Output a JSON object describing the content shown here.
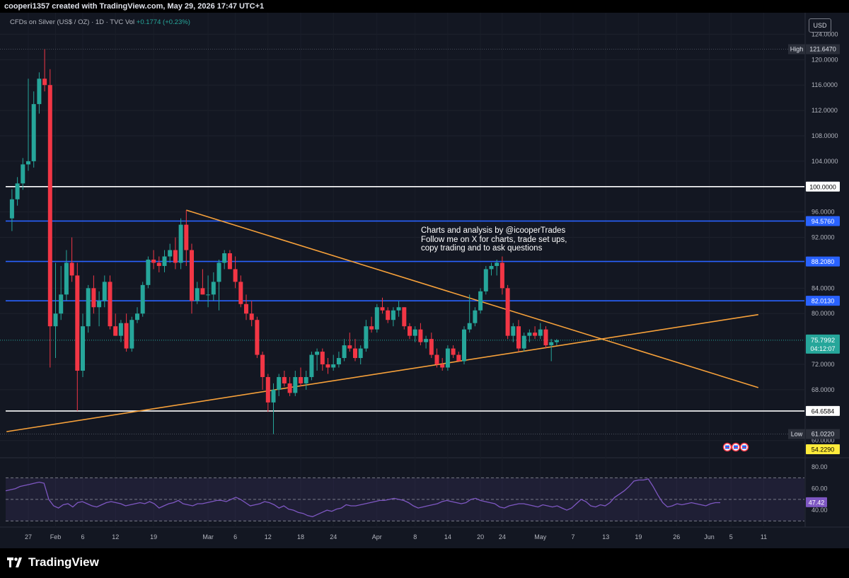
{
  "header": {
    "credit": "cooperi1357 created with TradingView.com, May 29, 2026 17:47 UTC+1"
  },
  "legend": {
    "symbol": "CFDs on Silver (US$ / OZ) · 1D · TVC",
    "vol_label": "Vol",
    "change": "+0.1774 (+0.23%)"
  },
  "currency_button": "USD",
  "annotation": {
    "lines": [
      "Charts and analysis by @icooperTrades",
      "Follow me on X for charts, trade set ups,",
      "copy trading and to ask questions"
    ]
  },
  "footer": {
    "brand": "TradingView"
  },
  "chart_data": {
    "type": "candlestick",
    "ylim": [
      60.3,
      126.5
    ],
    "yticks": [
      "124.0000",
      "120.0000",
      "116.0000",
      "112.0000",
      "108.0000",
      "104.0000",
      "96.0000",
      "92.0000",
      "84.0000",
      "80.0000",
      "72.0000",
      "68.0000",
      "60.0000"
    ],
    "xticks": [
      {
        "label": "27",
        "day": 0
      },
      {
        "label": "Feb",
        "day": 5
      },
      {
        "label": "6",
        "day": 10
      },
      {
        "label": "12",
        "day": 16
      },
      {
        "label": "19",
        "day": 23
      },
      {
        "label": "Mar",
        "day": 33
      },
      {
        "label": "6",
        "day": 38
      },
      {
        "label": "12",
        "day": 44
      },
      {
        "label": "18",
        "day": 50
      },
      {
        "label": "24",
        "day": 56
      },
      {
        "label": "Apr",
        "day": 64
      },
      {
        "label": "8",
        "day": 71
      },
      {
        "label": "14",
        "day": 77
      },
      {
        "label": "20",
        "day": 83
      },
      {
        "label": "24",
        "day": 87
      },
      {
        "label": "May",
        "day": 94
      },
      {
        "label": "7",
        "day": 100
      },
      {
        "label": "13",
        "day": 106
      },
      {
        "label": "19",
        "day": 112
      },
      {
        "label": "26",
        "day": 119
      },
      {
        "label": "Jun",
        "day": 125
      },
      {
        "label": "5",
        "day": 129
      },
      {
        "label": "11",
        "day": 135
      }
    ],
    "candles": [
      [
        "-3",
        95.0,
        99.6,
        93.0,
        98.0
      ],
      [
        "-2",
        98.0,
        101.5,
        97.0,
        100.5
      ],
      [
        "-1",
        100.5,
        104.5,
        99.5,
        103.5
      ],
      [
        "0",
        103.5,
        117.0,
        102.5,
        104.0
      ],
      [
        "1",
        104.0,
        115.0,
        103.0,
        113.0
      ],
      [
        "2",
        113.0,
        118.0,
        111.5,
        117.0
      ],
      [
        "3",
        117.0,
        121.64,
        115.0,
        116.0
      ],
      [
        "4",
        116.0,
        118.5,
        71.5,
        78.0
      ],
      [
        "5",
        78.0,
        88.0,
        73.0,
        80.0
      ],
      [
        "6",
        80.0,
        87.5,
        79.0,
        83.0
      ],
      [
        "7",
        83.0,
        90.0,
        82.0,
        88.0
      ],
      [
        "8",
        88.0,
        92.0,
        85.0,
        86.0
      ],
      [
        "9",
        86.0,
        88.0,
        64.66,
        71.0
      ],
      [
        "10",
        71.0,
        80.0,
        70.0,
        78.0
      ],
      [
        "11",
        78.0,
        84.5,
        77.0,
        84.0
      ],
      [
        "12",
        84.0,
        86.0,
        80.0,
        81.0
      ],
      [
        "13",
        81.0,
        83.5,
        78.0,
        82.0
      ],
      [
        "14",
        82.0,
        86.0,
        81.0,
        85.0
      ],
      [
        "15",
        85.0,
        86.0,
        77.5,
        78.0
      ],
      [
        "16",
        78.0,
        80.0,
        76.5,
        76.5
      ],
      [
        "17",
        76.5,
        79.0,
        75.5,
        78.5
      ],
      [
        "18",
        78.5,
        80.0,
        74.0,
        74.5
      ],
      [
        "19",
        74.5,
        79.5,
        74.0,
        79.0
      ],
      [
        "20",
        79.0,
        81.0,
        78.5,
        80.0
      ],
      [
        "21",
        80.0,
        85.0,
        79.5,
        84.5
      ],
      [
        "22",
        84.5,
        89.0,
        84.0,
        88.5
      ],
      [
        "23",
        88.5,
        90.0,
        87.0,
        88.0
      ],
      [
        "24",
        88.0,
        89.0,
        86.5,
        87.5
      ],
      [
        "25",
        87.5,
        90.0,
        86.5,
        89.0
      ],
      [
        "26",
        89.0,
        91.0,
        88.0,
        90.0
      ],
      [
        "27",
        90.0,
        92.0,
        87.0,
        88.0
      ],
      [
        "28",
        88.0,
        95.0,
        87.0,
        94.0
      ],
      [
        "29",
        94.0,
        96.3,
        87.5,
        90.0
      ],
      [
        "30",
        90.0,
        91.0,
        80.0,
        82.0
      ],
      [
        "31",
        82.0,
        85.0,
        81.5,
        84.0
      ],
      [
        "32",
        84.0,
        87.0,
        83.0,
        83.0
      ],
      [
        "33",
        83.0,
        86.0,
        81.0,
        83.0
      ],
      [
        "34",
        83.0,
        86.5,
        82.0,
        85.0
      ],
      [
        "35",
        85.0,
        88.5,
        80.5,
        88.0
      ],
      [
        "36",
        88.0,
        90.0,
        87.0,
        89.5
      ],
      [
        "37",
        89.5,
        90.0,
        87.0,
        87.0
      ],
      [
        "38",
        87.0,
        89.0,
        84.0,
        85.0
      ],
      [
        "39",
        85.0,
        86.0,
        81.0,
        81.5
      ],
      [
        "40",
        81.5,
        83.0,
        79.0,
        80.0
      ],
      [
        "41",
        80.0,
        82.0,
        78.0,
        79.0
      ],
      [
        "42",
        79.0,
        79.5,
        73.0,
        73.5
      ],
      [
        "43",
        73.5,
        74.0,
        68.0,
        70.0
      ],
      [
        "44",
        70.0,
        70.5,
        64.5,
        66.0
      ],
      [
        "45",
        66.0,
        69.0,
        61.02,
        68.0
      ],
      [
        "46",
        68.0,
        70.5,
        67.0,
        70.0
      ],
      [
        "47",
        70.0,
        71.0,
        68.5,
        69.0
      ],
      [
        "48",
        69.0,
        70.0,
        67.0,
        67.5
      ],
      [
        "49",
        67.5,
        71.0,
        67.0,
        70.0
      ],
      [
        "50",
        70.0,
        71.5,
        68.5,
        69.0
      ],
      [
        "51",
        69.0,
        71.0,
        68.0,
        70.0
      ],
      [
        "52",
        70.0,
        74.0,
        69.5,
        73.5
      ],
      [
        "53",
        73.5,
        74.5,
        71.0,
        74.0
      ],
      [
        "54",
        74.0,
        74.5,
        71.0,
        72.0
      ],
      [
        "55",
        72.0,
        73.0,
        70.5,
        71.5
      ],
      [
        "56",
        71.5,
        73.5,
        71.0,
        72.0
      ],
      [
        "57",
        72.0,
        74.0,
        71.5,
        73.0
      ],
      [
        "58",
        73.0,
        76.0,
        72.5,
        75.0
      ],
      [
        "59",
        75.0,
        77.0,
        74.0,
        74.5
      ],
      [
        "60",
        74.5,
        76.0,
        72.5,
        73.0
      ],
      [
        "61",
        73.0,
        75.0,
        72.0,
        74.5
      ],
      [
        "62",
        74.5,
        79.0,
        74.0,
        78.0
      ],
      [
        "63",
        78.0,
        79.5,
        77.0,
        77.5
      ],
      [
        "64",
        77.5,
        81.5,
        77.0,
        81.0
      ],
      [
        "65",
        81.0,
        82.5,
        80.0,
        80.5
      ],
      [
        "66",
        80.5,
        81.0,
        78.5,
        79.0
      ],
      [
        "67",
        79.0,
        81.0,
        78.0,
        80.5
      ],
      [
        "68",
        80.5,
        82.0,
        79.5,
        81.0
      ],
      [
        "69",
        81.0,
        81.0,
        77.5,
        78.0
      ],
      [
        "70",
        78.0,
        78.5,
        76.0,
        76.5
      ],
      [
        "71",
        76.5,
        78.0,
        75.5,
        77.5
      ],
      [
        "72",
        77.5,
        78.5,
        75.0,
        75.5
      ],
      [
        "73",
        75.5,
        76.5,
        74.5,
        76.0
      ],
      [
        "74",
        76.0,
        77.0,
        73.0,
        73.5
      ],
      [
        "75",
        73.5,
        74.5,
        71.5,
        72.0
      ],
      [
        "76",
        72.0,
        73.0,
        71.0,
        71.5
      ],
      [
        "77",
        71.5,
        75.0,
        71.0,
        74.5
      ],
      [
        "78",
        74.5,
        75.0,
        73.0,
        73.5
      ],
      [
        "79",
        73.5,
        74.0,
        72.5,
        72.5
      ],
      [
        "80",
        72.5,
        78.0,
        72.0,
        77.5
      ],
      [
        "81",
        77.5,
        83.0,
        77.0,
        78.5
      ],
      [
        "82",
        78.5,
        81.0,
        78.0,
        80.5
      ],
      [
        "83",
        80.5,
        84.0,
        80.0,
        83.5
      ],
      [
        "84",
        83.5,
        87.5,
        83.0,
        87.0
      ],
      [
        "85",
        87.0,
        88.0,
        86.0,
        87.5
      ],
      [
        "86",
        87.5,
        88.5,
        86.0,
        88.0
      ],
      [
        "87",
        88.0,
        89.0,
        83.0,
        84.0
      ],
      [
        "88",
        84.0,
        84.5,
        76.0,
        76.5
      ],
      [
        "89",
        76.5,
        78.5,
        75.5,
        78.0
      ],
      [
        "90",
        78.0,
        79.0,
        74.0,
        74.5
      ],
      [
        "91",
        74.5,
        77.0,
        74.0,
        76.5
      ],
      [
        "92",
        76.5,
        77.5,
        75.5,
        77.0
      ],
      [
        "93",
        77.0,
        78.0,
        76.0,
        76.5
      ],
      [
        "94",
        76.5,
        78.5,
        76.0,
        77.5
      ],
      [
        "95",
        77.5,
        78.0,
        74.5,
        75.0
      ],
      [
        "96",
        75.0,
        76.0,
        72.5,
        75.5
      ],
      [
        "97",
        75.5,
        76.0,
        75.0,
        75.8
      ]
    ],
    "levels": [
      {
        "value": 100.0,
        "label": "100.0000",
        "color": "#ffffff"
      },
      {
        "value": 94.576,
        "label": "94.5760",
        "color": "#2962ff"
      },
      {
        "value": 88.208,
        "label": "88.2080",
        "color": "#2962ff"
      },
      {
        "value": 82.013,
        "label": "82.0130",
        "color": "#2962ff"
      },
      {
        "value": 64.6584,
        "label": "64.6584",
        "color": "#ffffff"
      }
    ],
    "trendlines": [
      {
        "from": [
          -4,
          61.4
        ],
        "to": [
          112,
          76.9
        ],
        "extend_to": 134,
        "color": "#f7a13a"
      },
      {
        "from": [
          29,
          96.3
        ],
        "to": [
          112,
          74.2
        ],
        "extend_to": 134,
        "color": "#f7a13a"
      }
    ],
    "high": {
      "label": "High",
      "value": 121.647,
      "text": "121.6470"
    },
    "low": {
      "label": "Low",
      "value": 61.022,
      "text": "61.0220"
    },
    "last": {
      "value": 75.7992,
      "text": "75.7992",
      "countdown": "04:12:07"
    },
    "volume_tag": {
      "value": 54.229,
      "text": "54.2290"
    },
    "rsi": {
      "ylim": [
        25,
        88
      ],
      "yticks": [
        "80.00",
        "60.00",
        "40.00"
      ],
      "upper_band": 70,
      "mid": 50,
      "lower_band": 30,
      "value_tag": "47.42",
      "values": [
        58,
        59,
        60,
        62,
        63,
        64,
        65,
        66,
        65,
        50,
        44,
        42,
        45,
        46,
        43,
        47,
        48,
        46,
        44,
        43,
        45,
        47,
        48,
        47,
        46,
        44,
        45,
        46,
        47,
        46,
        48,
        46,
        42,
        44,
        46,
        47,
        49,
        46,
        45,
        44,
        46,
        46,
        47,
        48,
        49,
        49,
        48,
        50,
        52,
        50,
        47,
        44,
        45,
        46,
        48,
        47,
        45,
        42,
        44,
        41,
        40,
        38,
        37,
        35,
        34,
        36,
        38,
        40,
        39,
        41,
        42,
        45,
        44,
        44,
        45,
        46,
        47,
        48,
        49,
        49,
        50,
        51,
        50,
        49,
        47,
        44,
        42,
        43,
        44,
        45,
        46,
        48,
        49,
        48,
        47,
        46,
        47,
        50,
        51,
        49,
        48,
        47,
        46,
        43,
        42,
        44,
        45,
        46,
        46,
        45,
        44,
        43,
        45,
        44,
        43,
        44,
        42,
        40,
        42,
        46,
        50,
        48,
        44,
        43,
        45,
        44,
        47,
        52,
        55,
        58,
        62,
        67,
        68,
        68,
        69,
        62,
        54,
        47,
        43,
        44,
        46,
        45,
        46,
        47,
        46,
        45,
        44,
        46,
        47,
        47
      ]
    },
    "markers": [
      "flag",
      "flag",
      "flag"
    ]
  }
}
